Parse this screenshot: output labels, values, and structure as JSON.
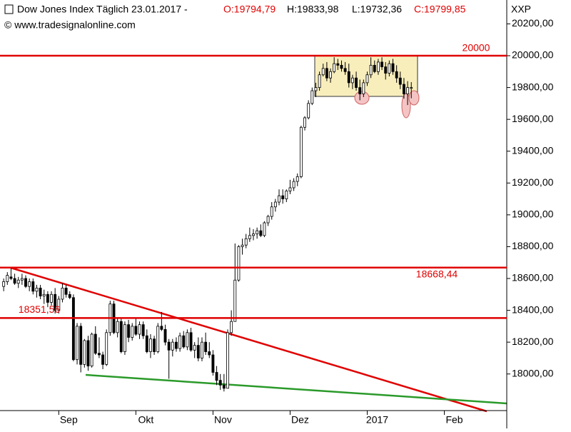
{
  "chart_data": {
    "type": "candlestick",
    "title": "Dow Jones Index Täglich  23.01.2017 -",
    "ohlc_labels": [
      "O:19794,79",
      "H:19833,98",
      "L:19732,36",
      "C:19799,85"
    ],
    "source": "© www.tradesignalonline.com",
    "axis_label": "XXP",
    "xlim": [
      -1,
      137
    ],
    "ylim": [
      17770,
      20350
    ],
    "xticks": [
      {
        "value": 15,
        "label": "Sep"
      },
      {
        "value": 36,
        "label": "Okt"
      },
      {
        "value": 57,
        "label": "Nov"
      },
      {
        "value": 78,
        "label": "Dez"
      },
      {
        "value": 99,
        "label": "2017"
      },
      {
        "value": 120,
        "label": "Feb"
      }
    ],
    "yticks": [
      {
        "value": 18000,
        "label": "18000,00"
      },
      {
        "value": 18200,
        "label": "18200,00"
      },
      {
        "value": 18400,
        "label": "18400,00"
      },
      {
        "value": 18600,
        "label": "18600,00"
      },
      {
        "value": 18800,
        "label": "18800,00"
      },
      {
        "value": 19000,
        "label": "19000,00"
      },
      {
        "value": 19200,
        "label": "19200,00"
      },
      {
        "value": 19400,
        "label": "19400,00"
      },
      {
        "value": 19600,
        "label": "19600,00"
      },
      {
        "value": 19800,
        "label": "19800,00"
      },
      {
        "value": 20000,
        "label": "20000,00"
      },
      {
        "value": 20200,
        "label": "20200,00"
      }
    ],
    "hlines": [
      {
        "value": 20000,
        "label": "20000"
      },
      {
        "value": 18668.44,
        "label": "18668,44"
      },
      {
        "value": 18351.56,
        "label": "18351,56"
      }
    ],
    "hline_color": "#e00000",
    "up_color": "#ffffff",
    "down_color": "#000000",
    "x": [
      0,
      1,
      2,
      3,
      4,
      5,
      6,
      7,
      8,
      9,
      10,
      11,
      12,
      13,
      14,
      15,
      16,
      17,
      18,
      19,
      20,
      21,
      22,
      23,
      24,
      25,
      26,
      27,
      28,
      29,
      30,
      31,
      32,
      33,
      34,
      35,
      36,
      37,
      38,
      39,
      40,
      41,
      42,
      43,
      44,
      45,
      46,
      47,
      48,
      49,
      50,
      51,
      52,
      53,
      54,
      55,
      56,
      57,
      58,
      59,
      60,
      61,
      62,
      63,
      64,
      65,
      66,
      67,
      68,
      69,
      70,
      71,
      72,
      73,
      74,
      75,
      76,
      77,
      78,
      79,
      80,
      81,
      82,
      83,
      84,
      85,
      86,
      87,
      88,
      89,
      90,
      91,
      92,
      93,
      94,
      95,
      96,
      97,
      98,
      99,
      100,
      101,
      102,
      103,
      104,
      105,
      106,
      107,
      108,
      109,
      110,
      111
    ],
    "ohlc": [
      [
        18550,
        18600,
        18520,
        18580
      ],
      [
        18580,
        18640,
        18560,
        18620
      ],
      [
        18610,
        18668,
        18590,
        18600
      ],
      [
        18600,
        18630,
        18560,
        18570
      ],
      [
        18570,
        18610,
        18540,
        18590
      ],
      [
        18590,
        18630,
        18560,
        18600
      ],
      [
        18600,
        18620,
        18540,
        18550
      ],
      [
        18550,
        18600,
        18520,
        18580
      ],
      [
        18580,
        18600,
        18500,
        18520
      ],
      [
        18520,
        18560,
        18480,
        18540
      ],
      [
        18540,
        18560,
        18470,
        18490
      ],
      [
        18490,
        18530,
        18440,
        18500
      ],
      [
        18500,
        18520,
        18420,
        18450
      ],
      [
        18450,
        18520,
        18430,
        18500
      ],
      [
        18500,
        18540,
        18380,
        18400
      ],
      [
        18400,
        18490,
        18380,
        18470
      ],
      [
        18470,
        18570,
        18450,
        18540
      ],
      [
        18540,
        18560,
        18480,
        18500
      ],
      [
        18500,
        18520,
        18470,
        18480
      ],
      [
        18480,
        18500,
        18080,
        18090
      ],
      [
        18090,
        18320,
        18060,
        18300
      ],
      [
        18300,
        18320,
        18010,
        18060
      ],
      [
        18060,
        18220,
        18040,
        18210
      ],
      [
        18210,
        18240,
        18020,
        18050
      ],
      [
        18050,
        18260,
        18040,
        18250
      ],
      [
        18250,
        18300,
        18120,
        18130
      ],
      [
        18130,
        18230,
        18100,
        18120
      ],
      [
        18120,
        18140,
        18030,
        18060
      ],
      [
        18060,
        18280,
        18050,
        18260
      ],
      [
        18260,
        18460,
        18240,
        18440
      ],
      [
        18440,
        18460,
        18250,
        18260
      ],
      [
        18260,
        18350,
        18230,
        18330
      ],
      [
        18330,
        18350,
        18130,
        18140
      ],
      [
        18140,
        18330,
        18120,
        18310
      ],
      [
        18310,
        18340,
        18200,
        18230
      ],
      [
        18230,
        18320,
        18210,
        18300
      ],
      [
        18300,
        18350,
        18240,
        18250
      ],
      [
        18250,
        18330,
        18220,
        18310
      ],
      [
        18310,
        18330,
        18220,
        18240
      ],
      [
        18240,
        18280,
        18130,
        18140
      ],
      [
        18140,
        18250,
        18100,
        18220
      ],
      [
        18220,
        18240,
        18120,
        18140
      ],
      [
        18140,
        18320,
        18130,
        18300
      ],
      [
        18300,
        18390,
        18270,
        18280
      ],
      [
        18280,
        18310,
        18180,
        18200
      ],
      [
        18200,
        18220,
        17970,
        18150
      ],
      [
        18150,
        18220,
        18110,
        18200
      ],
      [
        18200,
        18230,
        18140,
        18160
      ],
      [
        18160,
        18260,
        18140,
        18240
      ],
      [
        18240,
        18270,
        18160,
        18170
      ],
      [
        18170,
        18280,
        18150,
        18260
      ],
      [
        18260,
        18290,
        18140,
        18150
      ],
      [
        18150,
        18200,
        18100,
        18180
      ],
      [
        18180,
        18230,
        18080,
        18100
      ],
      [
        18100,
        18230,
        18080,
        18200
      ],
      [
        18200,
        18260,
        18120,
        18140
      ],
      [
        18140,
        18200,
        18100,
        18120
      ],
      [
        18120,
        18150,
        17990,
        18010
      ],
      [
        18010,
        18050,
        17930,
        17960
      ],
      [
        17960,
        18000,
        17900,
        17930
      ],
      [
        17930,
        18000,
        17890,
        17910
      ],
      [
        17910,
        18280,
        17910,
        18260
      ],
      [
        18260,
        18400,
        18240,
        18330
      ],
      [
        18330,
        18820,
        18330,
        18590
      ],
      [
        18590,
        18810,
        18580,
        18800
      ],
      [
        18800,
        18850,
        18750,
        18810
      ],
      [
        18810,
        18880,
        18790,
        18850
      ],
      [
        18850,
        18920,
        18830,
        18870
      ],
      [
        18870,
        18910,
        18840,
        18880
      ],
      [
        18880,
        18920,
        18850,
        18900
      ],
      [
        18900,
        18940,
        18860,
        18870
      ],
      [
        18870,
        18960,
        18860,
        18950
      ],
      [
        18950,
        19000,
        18930,
        18990
      ],
      [
        18990,
        19080,
        18970,
        19050
      ],
      [
        19050,
        19100,
        19020,
        19080
      ],
      [
        19080,
        19160,
        19060,
        19120
      ],
      [
        19120,
        19160,
        19070,
        19100
      ],
      [
        19100,
        19160,
        19080,
        19150
      ],
      [
        19150,
        19220,
        19130,
        19170
      ],
      [
        19170,
        19230,
        19150,
        19210
      ],
      [
        19210,
        19260,
        19180,
        19240
      ],
      [
        19240,
        19560,
        19230,
        19550
      ],
      [
        19550,
        19620,
        19530,
        19610
      ],
      [
        19610,
        19720,
        19600,
        19700
      ],
      [
        19700,
        19800,
        19690,
        19780
      ],
      [
        19780,
        19830,
        19740,
        19800
      ],
      [
        19800,
        19900,
        19780,
        19880
      ],
      [
        19880,
        19950,
        19870,
        19920
      ],
      [
        19920,
        19960,
        19840,
        19860
      ],
      [
        19860,
        19920,
        19830,
        19900
      ],
      [
        19900,
        19990,
        19890,
        19950
      ],
      [
        19950,
        19980,
        19910,
        19940
      ],
      [
        19940,
        19970,
        19900,
        19920
      ],
      [
        19920,
        19960,
        19880,
        19900
      ],
      [
        19900,
        19950,
        19800,
        19830
      ],
      [
        19830,
        19880,
        19790,
        19860
      ],
      [
        19860,
        19900,
        19780,
        19800
      ],
      [
        19800,
        19850,
        19720,
        19760
      ],
      [
        19760,
        19850,
        19740,
        19830
      ],
      [
        19830,
        19900,
        19810,
        19880
      ],
      [
        19880,
        19990,
        19860,
        19940
      ],
      [
        19940,
        19970,
        19890,
        19900
      ],
      [
        19900,
        19980,
        19880,
        19960
      ],
      [
        19960,
        19990,
        19910,
        19930
      ],
      [
        19930,
        19960,
        19850,
        19890
      ],
      [
        19890,
        19970,
        19870,
        19950
      ],
      [
        19950,
        19980,
        19880,
        19900
      ],
      [
        19900,
        19940,
        19830,
        19860
      ],
      [
        19860,
        19900,
        19790,
        19820
      ],
      [
        19820,
        19860,
        19730,
        19760
      ],
      [
        19760,
        19840,
        19690,
        19800
      ],
      [
        19794.79,
        19833.98,
        19732.36,
        19799.85
      ]
    ]
  }
}
